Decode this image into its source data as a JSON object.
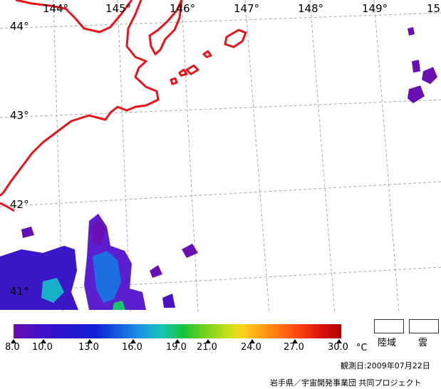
{
  "map": {
    "longitude_labels": [
      "144°",
      "145°",
      "146°",
      "147°",
      "148°",
      "149°",
      "15"
    ],
    "latitude_labels": [
      "44°",
      "43°",
      "42°",
      "41°"
    ],
    "colors": {
      "coastline": "#e8141c",
      "grid": "#aaaaaa"
    }
  },
  "colorbar": {
    "tick_labels": [
      "8.0",
      "10.0",
      "13.0",
      "16.0",
      "19.0",
      "21.0",
      "24.0",
      "27.0",
      "30.0"
    ],
    "unit": "°C",
    "min_color": "#6a0fb4",
    "max_color": "#b00000"
  },
  "legend": {
    "land_label": "陸域",
    "cloud_label": "雲"
  },
  "footer": {
    "observation_date": "観測日:2009年07月22日",
    "credit": "岩手県／宇宙開発事業団 共同プロジェクト"
  }
}
